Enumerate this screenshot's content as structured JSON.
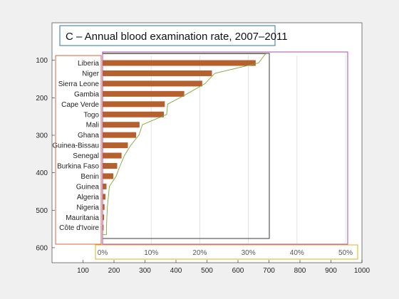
{
  "chart_data": {
    "type": "bar",
    "orientation": "horizontal",
    "title": "C – Annual blood examination rate, 2007–2011",
    "categories": [
      "Liberia",
      "Niger",
      "Sierra Leone",
      "Gambia",
      "Cape Verde",
      "Togo",
      "Mali",
      "Ghana",
      "Guinea-Bissau",
      "Senegal",
      "Burkina Faso",
      "Benin",
      "Guinea",
      "Algeria",
      "Nigeria",
      "Mauritania",
      "Côte d'Ivoire"
    ],
    "values": [
      31.5,
      22.5,
      20.5,
      16.8,
      12.8,
      12.6,
      7.6,
      6.9,
      5.2,
      3.9,
      3.0,
      2.2,
      0.8,
      0.6,
      0.4,
      0.3,
      0.2
    ],
    "percent_ticks": [
      "0%",
      "10%",
      "20%",
      "30%",
      "40%",
      "50%"
    ],
    "percent_range": [
      0,
      50
    ],
    "bar_color": "#b5602d",
    "figure_axes": {
      "x_ticks": [
        "100",
        "200",
        "300",
        "400",
        "500",
        "600",
        "700",
        "800",
        "900",
        "1000"
      ],
      "y_ticks": [
        "100",
        "200",
        "300",
        "400",
        "500",
        "600"
      ],
      "xlim": [
        0,
        1000
      ],
      "ylim": [
        0,
        640
      ],
      "y_reversed": true
    },
    "annotation_box_colors": {
      "title": "#2f6fb0",
      "labels": "#d9663c",
      "bars": "#3b3b3b",
      "outline": "#7fa63a",
      "plot": "#a64fb0",
      "percent_axis": "#e0b020"
    },
    "grid": "vertical"
  }
}
